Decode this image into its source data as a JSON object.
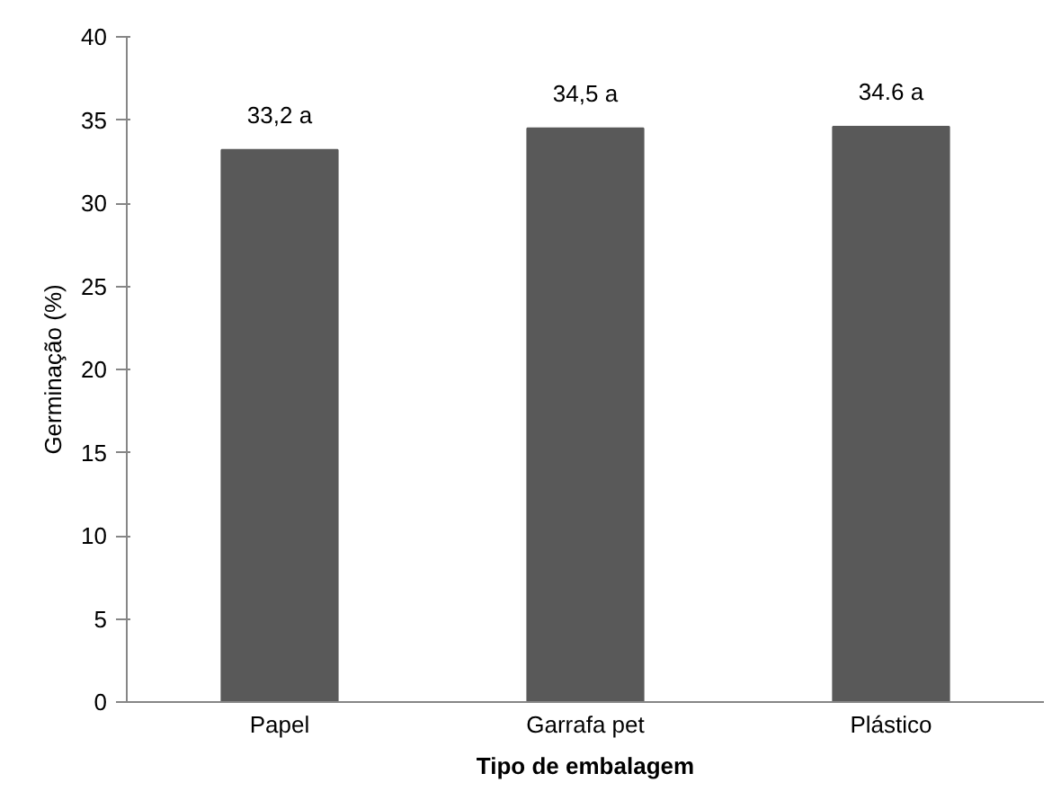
{
  "chart_data": {
    "type": "bar",
    "xlabel": "Tipo de embalagem",
    "ylabel": "Germinação (%)",
    "categories": [
      "Papel",
      "Garrafa pet",
      "Plástico"
    ],
    "values": [
      33.2,
      34.5,
      34.6
    ],
    "value_labels": [
      "33,2 a",
      "34,5 a",
      "34.6 a"
    ],
    "color": "#595959",
    "ylim": [
      0,
      40
    ],
    "yticks": [
      0,
      5,
      10,
      15,
      20,
      25,
      30,
      35,
      40
    ],
    "grid": false
  }
}
